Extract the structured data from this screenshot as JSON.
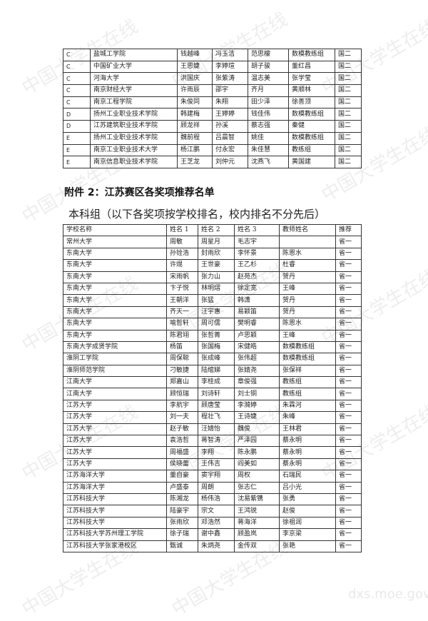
{
  "watermark": "中国大学生在线",
  "watermark_url": "dxs.moe.gov.cn",
  "table1": {
    "rows": [
      [
        "C",
        "盐城工学院",
        "钱越峰",
        "冯玉洁",
        "范思檬",
        "数模教练组",
        "国二"
      ],
      [
        "C",
        "中国矿业大学",
        "王思婕",
        "李婷瑄",
        "胡子骏",
        "董红昌",
        "国二"
      ],
      [
        "C",
        "河海大学",
        "洪国庆",
        "张紫涛",
        "温志美",
        "张学莹",
        "国二"
      ],
      [
        "C",
        "南京财经大学",
        "许雨辰",
        "邵宇",
        "齐月",
        "黄顺林",
        "国二"
      ],
      [
        "C",
        "南京工程学院",
        "朱俊同",
        "朱翔",
        "田少泽",
        "徐善顶",
        "国二"
      ],
      [
        "D",
        "扬州工业职业技术学院",
        "韩建梅",
        "王婷婷",
        "钱佳伟",
        "数模教练组",
        "国二"
      ],
      [
        "D",
        "江苏建筑职业技术学院",
        "顾龙祥",
        "孙溪",
        "蔡志强",
        "秦健",
        "国二"
      ],
      [
        "E",
        "扬州工业职业技术学院",
        "魏前程",
        "吕晨智",
        "姚佳",
        "数模教练组",
        "国二"
      ],
      [
        "E",
        "南京工业职业技术大学",
        "杨江鹏",
        "付永宏",
        "朱佳慧",
        "教练组",
        "国二"
      ],
      [
        "E",
        "南京信息职业技术学院",
        "王芝龙",
        "刘仲元",
        "沈燕飞",
        "黄国建",
        "国二"
      ]
    ]
  },
  "section_title": "附件 2：江苏赛区各奖项推荐名单",
  "subtitle": "本科组（以下各奖项按学校排名，校内排名不分先后）",
  "table2": {
    "headers": [
      "学校名称",
      "姓名 1",
      "姓名 2",
      "姓名 3",
      "教师姓名",
      "推荐"
    ],
    "rows": [
      [
        "常州大学",
        "周敏",
        "周星月",
        "毛志宇",
        "",
        "省一"
      ],
      [
        "东南大学",
        "孙铨浩",
        "封雨欣",
        "李怀景",
        "陈恩水",
        "省一"
      ],
      [
        "东南大学",
        "许焜",
        "王世豪",
        "王乙杉",
        "杜睿",
        "省一"
      ],
      [
        "东南大学",
        "宋雨帆",
        "张力山",
        "赵苑杰",
        "贺丹",
        "省一"
      ],
      [
        "东南大学",
        "卞子悦",
        "林明熠",
        "徐定宽",
        "王峰",
        "省一"
      ],
      [
        "东南大学",
        "王朝洋",
        "张猛",
        "韩潇",
        "贺丹",
        "省一"
      ],
      [
        "东南大学",
        "齐天一",
        "汪宇惠",
        "易颖笛",
        "贺丹",
        "省一"
      ],
      [
        "东南大学",
        "喻哲轩",
        "周可儒",
        "樊明睿",
        "陈恩水",
        "省一"
      ],
      [
        "东南大学",
        "陈君翊",
        "张哲菁",
        "卢思颖",
        "王峰",
        "省一"
      ],
      [
        "东南大学成贤学院",
        "杨笛",
        "张国梅",
        "宋健皓",
        "数模教练组",
        "省一"
      ],
      [
        "淮阴工学院",
        "周保聪",
        "张成峰",
        "张伟超",
        "数模教练组",
        "省一"
      ],
      [
        "淮阴师范学院",
        "刁敏捷",
        "陆绾娣",
        "张婧尧",
        "张保祥",
        "省一"
      ],
      [
        "江南大学",
        "郑嘉山",
        "李桂成",
        "章俊强",
        "教练组",
        "省一"
      ],
      [
        "江南大学",
        "顾恒瑞",
        "刘诗轩",
        "刘士铜",
        "教练组",
        "省一"
      ],
      [
        "江苏大学",
        "李航宇",
        "顾唐莹",
        "李漪婷",
        "朱霖河",
        "省一"
      ],
      [
        "江苏大学",
        "刘一夫",
        "程壮飞",
        "王诗婕",
        "朱峰",
        "省一"
      ],
      [
        "江苏大学",
        "赵子敏",
        "汪婧怡",
        "魏俊",
        "王林君",
        "省一"
      ],
      [
        "江苏大学",
        "袁浩哲",
        "蒋智涛",
        "严泽园",
        "蔡永明",
        "省一"
      ],
      [
        "江苏大学",
        "周福盛",
        "李翔",
        "陈永鹏",
        "蔡永明",
        "省一"
      ],
      [
        "江苏大学",
        "侯晓蕾",
        "王伟吉",
        "阎美如",
        "蔡永明",
        "省一"
      ],
      [
        "江苏海洋大学",
        "董自豪",
        "窦宇翔",
        "周权",
        "石瑞民",
        "省一"
      ],
      [
        "江苏海洋大学",
        "卢盛泰",
        "周朗",
        "张志仁",
        "吕小光",
        "省一"
      ],
      [
        "江苏科技大学",
        "陈湘龙",
        "杨伟浩",
        "沈易紫镌",
        "张勇",
        "省一"
      ],
      [
        "江苏科技大学",
        "陆豪宇",
        "宗文",
        "王鸿锐",
        "赵俊",
        "省一"
      ],
      [
        "江苏科技大学",
        "张雨欣",
        "邓浩然",
        "蒋海洋",
        "徐祖润",
        "省一"
      ],
      [
        "江苏科技大学苏州理工学院",
        "徐子瑞",
        "谢中鑫",
        "顾盈岚",
        "李京梁",
        "省一"
      ],
      [
        "江苏科技大学张家港校区",
        "甄诚",
        "朱炳尧",
        "金传双",
        "张艳",
        "省一"
      ]
    ]
  }
}
